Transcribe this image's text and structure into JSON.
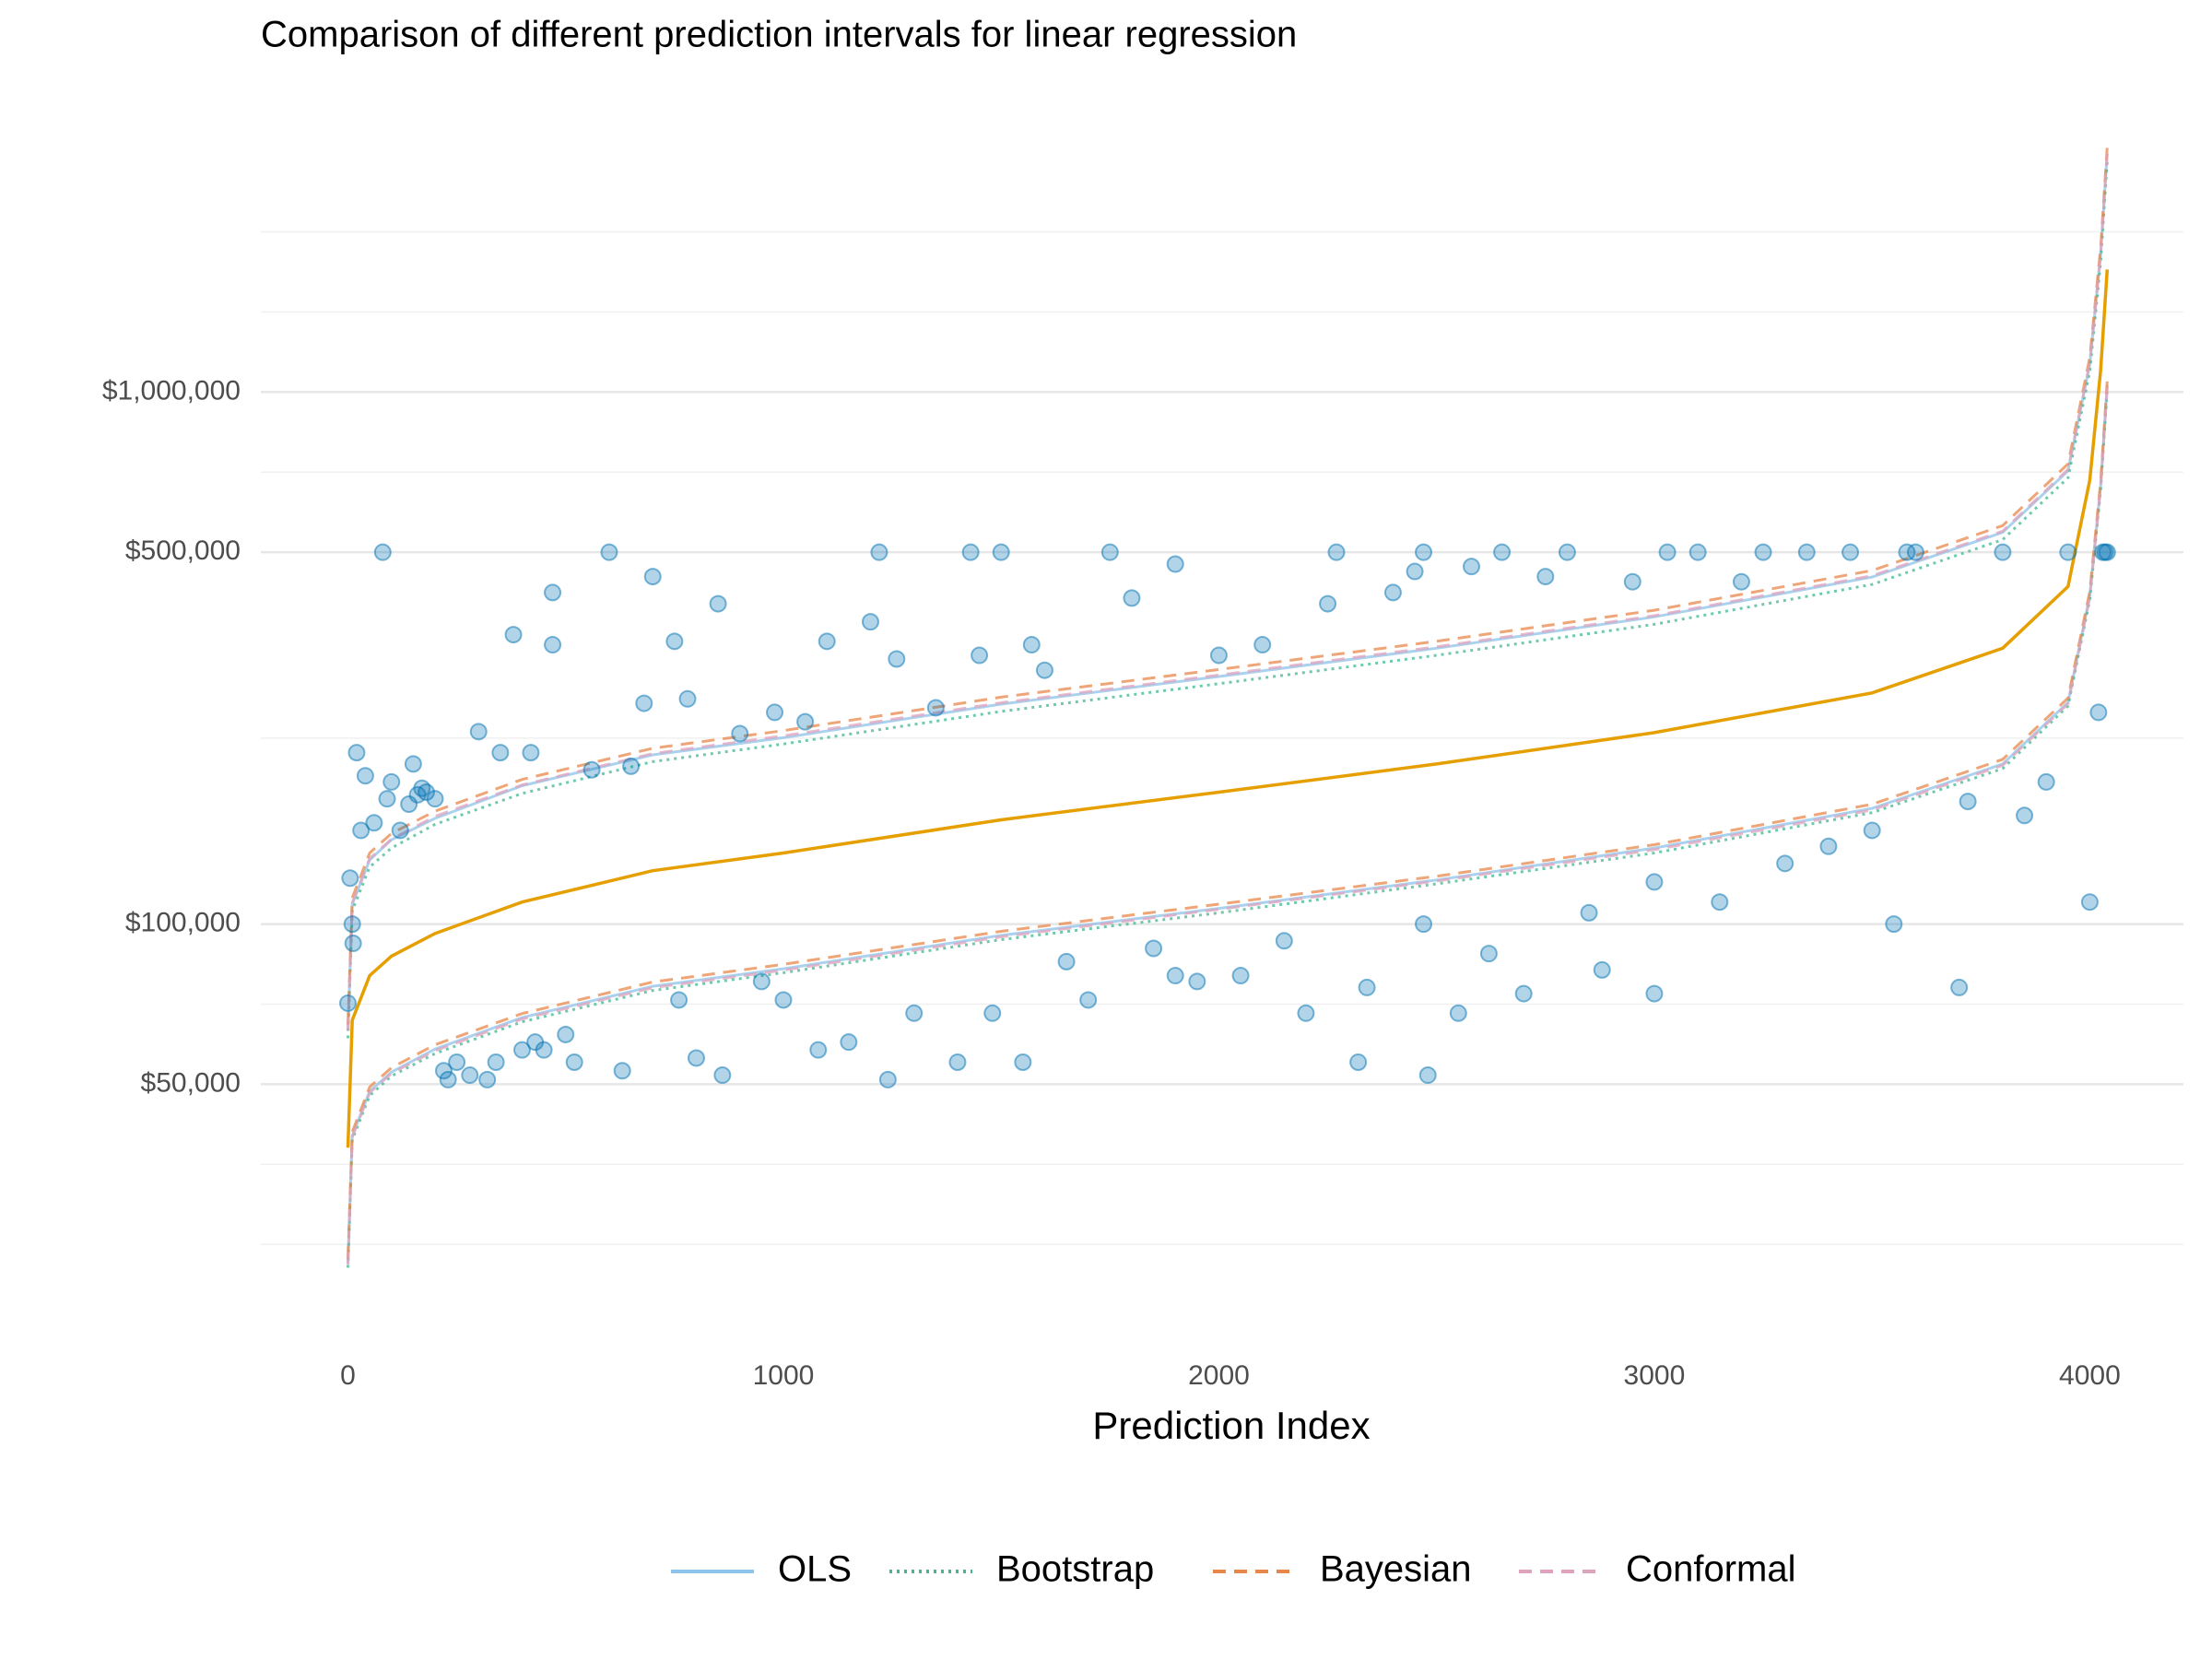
{
  "chart_data": {
    "type": "line",
    "title": "Comparison of different prediction intervals for linear regression",
    "x_label": "Prediction Index",
    "y_scale": "log",
    "xlim": [
      -200,
      4215
    ],
    "ylim": [
      16000,
      3000000
    ],
    "xticks": [
      0,
      1000,
      2000,
      3000,
      4000
    ],
    "yticks": [
      {
        "value": 50000,
        "label": "$50,000"
      },
      {
        "value": 100000,
        "label": "$100,000"
      },
      {
        "value": 500000,
        "label": "$500,000"
      },
      {
        "value": 1000000,
        "label": "$1,000,000"
      }
    ],
    "ygrid_minor": [
      25000,
      35355,
      70711,
      223607,
      707107,
      1414214,
      2000000
    ],
    "grid": true,
    "legend": "bottom",
    "x": [
      0,
      10,
      50,
      100,
      200,
      400,
      700,
      1000,
      1500,
      2000,
      2500,
      3000,
      3500,
      3800,
      3950,
      4000,
      4025,
      4040
    ],
    "series": [
      {
        "name": "OLS",
        "color": "#8ec3ea",
        "linestyle": "solid",
        "upper": [
          63000,
          109000,
          132000,
          144000,
          158000,
          182000,
          208000,
          224000,
          259000,
          292000,
          330000,
          378000,
          449000,
          545000,
          711000,
          1127000,
          1815000,
          2805000
        ],
        "lower": [
          23000,
          40000,
          48500,
          52700,
          58200,
          66700,
          76400,
          82400,
          95200,
          107000,
          121000,
          139000,
          165000,
          200000,
          261000,
          414000,
          667000,
          1030000
        ]
      },
      {
        "name": "Bootstrap",
        "color": "#3fb892",
        "linestyle": "dotted",
        "upper": [
          61000,
          106000,
          128000,
          139000,
          154000,
          176000,
          202000,
          218000,
          251000,
          283000,
          320000,
          366000,
          435000,
          528000,
          690000,
          1093000,
          1760000,
          2720000
        ],
        "lower": [
          22600,
          39300,
          47600,
          51800,
          57100,
          65500,
          75000,
          81000,
          93500,
          105000,
          119000,
          136000,
          162000,
          196000,
          257000,
          407000,
          655000,
          1012000
        ]
      },
      {
        "name": "Bayesian",
        "color": "#e8874a",
        "linestyle": "dashed",
        "upper": [
          64600,
          112000,
          136000,
          148000,
          163000,
          187000,
          214000,
          231000,
          267000,
          301000,
          340000,
          389000,
          462000,
          561000,
          733000,
          1161000,
          1870000,
          2890000
        ],
        "lower": [
          23500,
          40700,
          49400,
          53700,
          59300,
          67900,
          77800,
          84000,
          96900,
          109000,
          123000,
          141000,
          168000,
          204000,
          266000,
          422000,
          679000,
          1049000
        ]
      },
      {
        "name": "Conformal",
        "color": "#dfa3bd",
        "linestyle": "dashed",
        "upper": [
          63100,
          109600,
          132800,
          144400,
          159400,
          182600,
          209200,
          225800,
          260600,
          293800,
          332000,
          380000,
          451500,
          547800,
          715500,
          1134000,
          1826000,
          2822000
        ],
        "lower": [
          22900,
          39800,
          48200,
          52400,
          57800,
          66300,
          75900,
          81900,
          94600,
          106600,
          120500,
          138000,
          163900,
          198800,
          259600,
          411400,
          662700,
          1024000
        ]
      }
    ],
    "prediction_line": {
      "color": "#e69f00",
      "values": [
        38000,
        66000,
        80000,
        87000,
        96000,
        110000,
        126000,
        136000,
        157000,
        177000,
        200000,
        229000,
        272000,
        330000,
        431000,
        683000,
        1100000,
        1700000
      ]
    },
    "points": {
      "color": "#0072b2",
      "x": [
        0,
        5,
        10,
        12,
        20,
        30,
        40,
        60,
        80,
        90,
        100,
        120,
        140,
        150,
        160,
        170,
        180,
        200,
        220,
        230,
        250,
        280,
        300,
        320,
        340,
        350,
        380,
        400,
        420,
        430,
        450,
        470,
        470,
        500,
        520,
        560,
        600,
        630,
        650,
        680,
        700,
        750,
        760,
        780,
        800,
        850,
        860,
        900,
        950,
        980,
        1000,
        1050,
        1080,
        1100,
        1150,
        1200,
        1220,
        1240,
        1260,
        1300,
        1350,
        1400,
        1430,
        1450,
        1480,
        1500,
        1550,
        1570,
        1600,
        1650,
        1700,
        1750,
        1800,
        1850,
        1900,
        1900,
        1950,
        2000,
        2050,
        2100,
        2150,
        2200,
        2250,
        2270,
        2320,
        2340,
        2400,
        2450,
        2470,
        2470,
        2480,
        2550,
        2580,
        2620,
        2650,
        2700,
        2750,
        2800,
        2850,
        2880,
        2950,
        3000,
        3000,
        3030,
        3100,
        3150,
        3200,
        3250,
        3300,
        3350,
        3400,
        3450,
        3500,
        3550,
        3580,
        3600,
        3700,
        3720,
        3800,
        3850,
        3900,
        3950,
        4000,
        4020,
        4030,
        4035,
        4040
      ],
      "y": [
        71000,
        122000,
        100000,
        92000,
        210000,
        150000,
        190000,
        155000,
        500000,
        172000,
        185000,
        150000,
        168000,
        200000,
        175000,
        180000,
        177000,
        172000,
        53000,
        51000,
        55000,
        52000,
        230000,
        51000,
        55000,
        210000,
        350000,
        58000,
        210000,
        60000,
        58000,
        335000,
        420000,
        62000,
        55000,
        195000,
        500000,
        53000,
        198000,
        260000,
        450000,
        340000,
        72000,
        265000,
        56000,
        400000,
        52000,
        228000,
        78000,
        250000,
        72000,
        240000,
        58000,
        340000,
        60000,
        370000,
        500000,
        51000,
        315000,
        68000,
        255000,
        55000,
        500000,
        320000,
        68000,
        500000,
        55000,
        335000,
        300000,
        85000,
        72000,
        500000,
        410000,
        90000,
        475000,
        80000,
        78000,
        320000,
        80000,
        335000,
        93000,
        68000,
        400000,
        500000,
        55000,
        76000,
        420000,
        460000,
        500000,
        100000,
        52000,
        68000,
        470000,
        88000,
        500000,
        74000,
        450000,
        500000,
        105000,
        82000,
        440000,
        74000,
        120000,
        500000,
        500000,
        110000,
        440000,
        500000,
        130000,
        500000,
        140000,
        500000,
        150000,
        100000,
        500000,
        500000,
        76000,
        170000,
        500000,
        160000,
        185000,
        500000,
        110000,
        250000,
        500000,
        500000,
        500000
      ]
    }
  }
}
